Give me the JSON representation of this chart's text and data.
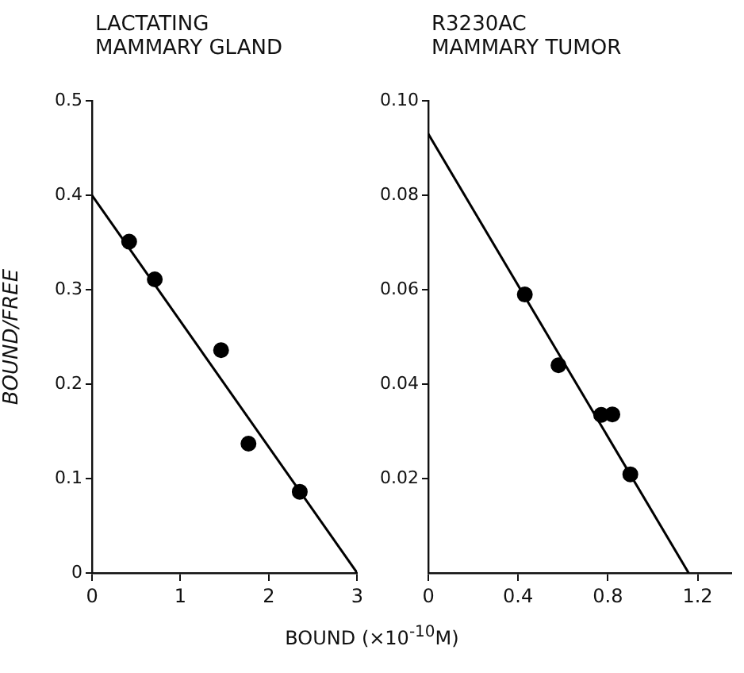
{
  "chart_data": [
    {
      "type": "scatter",
      "title": "LACTATING MAMMARY GLAND",
      "xlabel": "BOUND (×10$^{-10}$M)",
      "ylabel": "BOUND/FREE",
      "xlim": [
        0,
        3
      ],
      "xticks": [
        0,
        1,
        2,
        3
      ],
      "ylim": [
        0,
        0.5
      ],
      "yticks": [
        0,
        0.1,
        0.2,
        0.3,
        0.4,
        0.5
      ],
      "grid": false,
      "legend": false,
      "marker": "circle",
      "series": [
        {
          "color": "#000000",
          "x": [
            0.42,
            0.71,
            1.46,
            1.77,
            2.35
          ],
          "values": [
            0.351,
            0.311,
            0.236,
            0.137,
            0.086
          ]
        },
        {
          "type": "line",
          "marker": "none",
          "color": "#000000",
          "x": [
            0,
            3
          ],
          "values": [
            0.4,
            0
          ]
        }
      ]
    },
    {
      "type": "scatter",
      "title": "R3230AC MAMMARY TUMOR",
      "xlim": [
        0,
        1.35
      ],
      "xticks": [
        0,
        0.4,
        0.8,
        1.2
      ],
      "ylim": [
        0,
        0.1
      ],
      "yticks": [
        0.02,
        0.04,
        0.06,
        0.08,
        {
          "value": 0.1,
          "label": "0.10"
        }
      ],
      "grid": false,
      "legend": false,
      "marker": "circle",
      "series": [
        {
          "color": "#000000",
          "x": [
            0.43,
            0.58,
            0.77,
            0.82,
            0.9
          ],
          "values": [
            0.059,
            0.044,
            0.0335,
            0.0336,
            0.0209
          ]
        },
        {
          "type": "line",
          "marker": "none",
          "color": "#000000",
          "x": [
            0,
            1.16
          ],
          "values": [
            0.093,
            0
          ]
        }
      ]
    }
  ]
}
